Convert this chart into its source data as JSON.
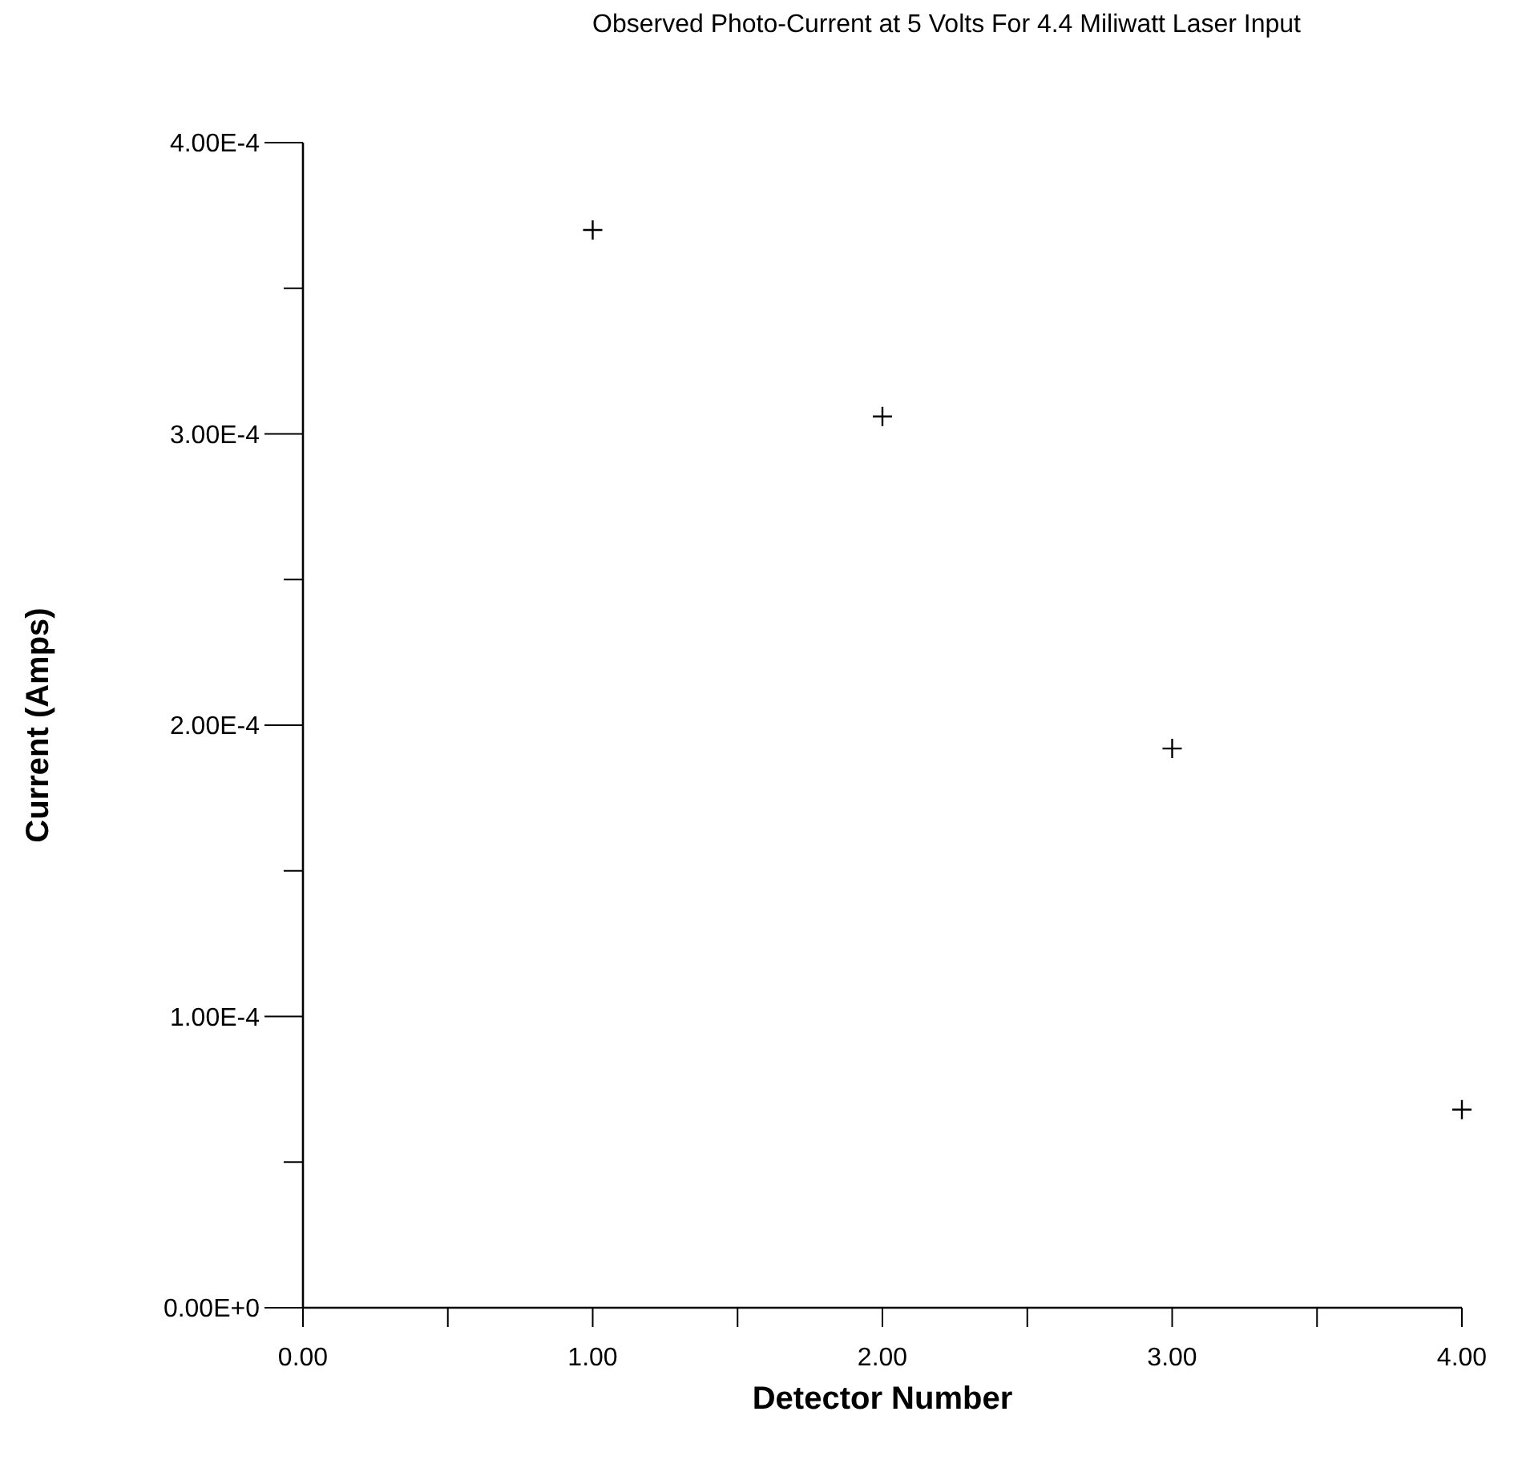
{
  "chart_data": {
    "type": "scatter",
    "title": "Observed Photo-Current at 5 Volts For 4.4 Miliwatt Laser Input",
    "xlabel": "Detector Number",
    "ylabel": "Current (Amps)",
    "x": [
      1,
      2,
      3,
      4
    ],
    "series": [
      {
        "color": "#000000",
        "values": [
          0.00037,
          0.000306,
          0.000192,
          6.8e-05
        ]
      }
    ],
    "marker": "cross",
    "grid": false,
    "xlim": [
      0,
      4
    ],
    "ylim": [
      0,
      0.0004
    ],
    "xticks": [
      {
        "value": 0,
        "label": "0.00"
      },
      {
        "value": 0.5,
        "label": null
      },
      {
        "value": 1,
        "label": "1.00"
      },
      {
        "value": 1.5,
        "label": null
      },
      {
        "value": 2,
        "label": "2.00"
      },
      {
        "value": 2.5,
        "label": null
      },
      {
        "value": 3,
        "label": "3.00"
      },
      {
        "value": 3.5,
        "label": null
      },
      {
        "value": 4,
        "label": "4.00"
      }
    ],
    "yticks": [
      {
        "value": 0,
        "label": "0.00E+0"
      },
      {
        "value": 5e-05,
        "label": null
      },
      {
        "value": 0.0001,
        "label": "1.00E-4"
      },
      {
        "value": 0.00015,
        "label": null
      },
      {
        "value": 0.0002,
        "label": "2.00E-4"
      },
      {
        "value": 0.00025,
        "label": null
      },
      {
        "value": 0.0003,
        "label": "3.00E-4"
      },
      {
        "value": 0.00035,
        "label": null
      },
      {
        "value": 0.0004,
        "label": "4.00E-4"
      }
    ]
  }
}
